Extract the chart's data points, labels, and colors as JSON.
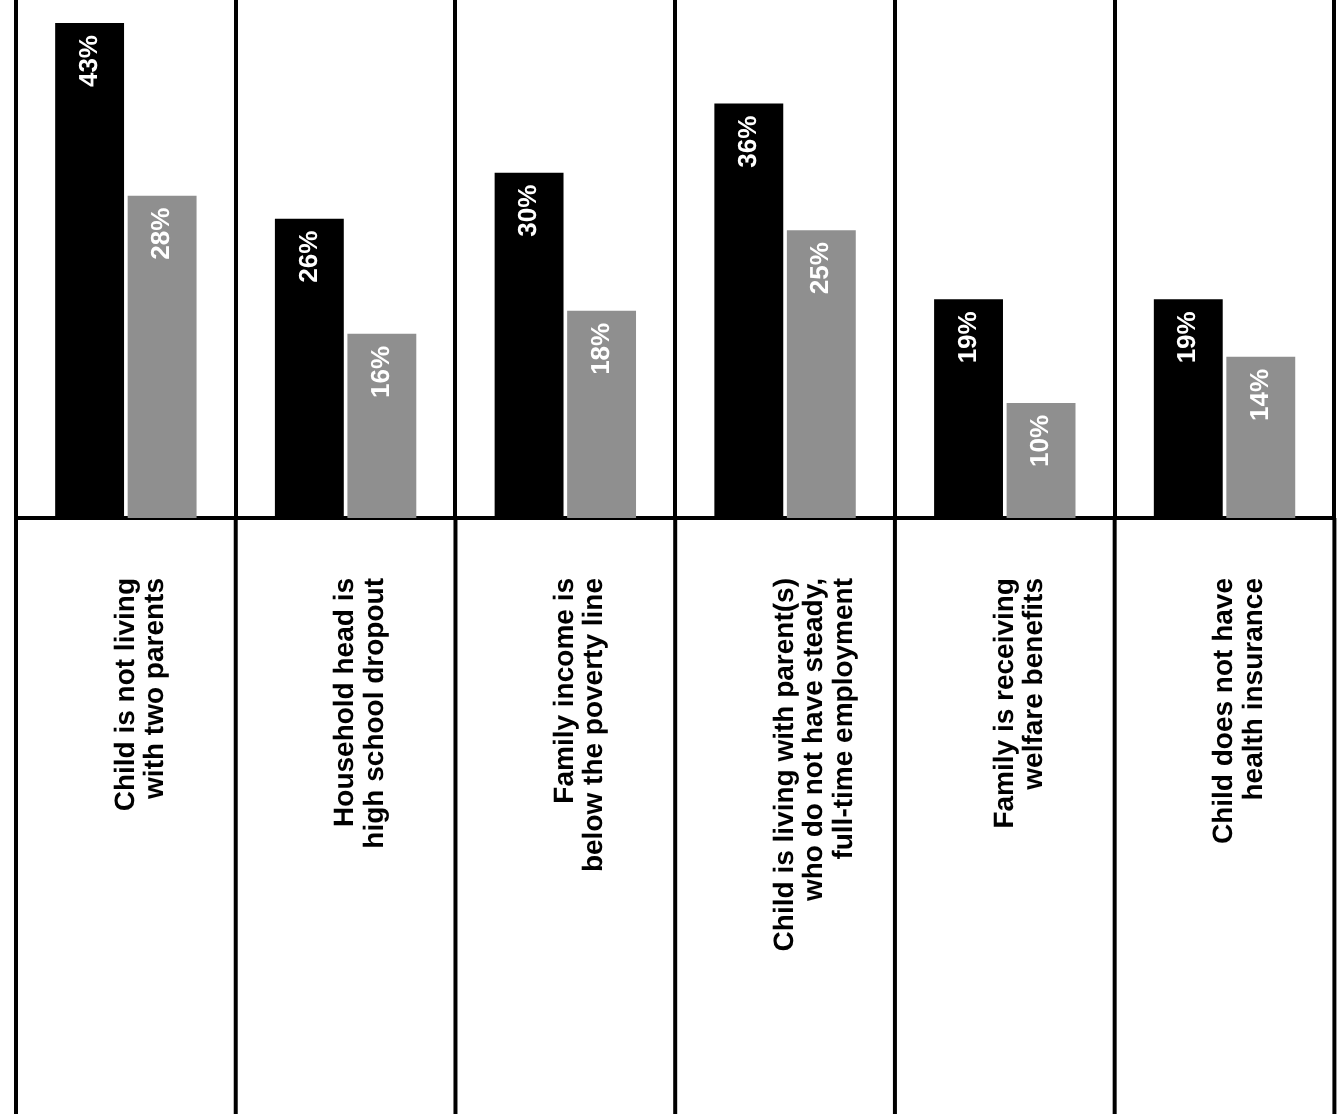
{
  "chart_data": {
    "type": "bar",
    "categories": [
      "Child is not living\nwith two parents",
      "Household head is\nhigh school dropout",
      "Family income is\nbelow the poverty line",
      "Child is living with parent(s)\nwho do not have steady,\nfull-time employment",
      "Family is receiving\nwelfare benefits",
      "Child does not have\nhealth insurance"
    ],
    "series": [
      {
        "color": "#000000",
        "values": [
          43,
          26,
          30,
          36,
          19,
          19
        ],
        "value_labels": [
          "43%",
          "26%",
          "30%",
          "36%",
          "19%",
          "19%"
        ]
      },
      {
        "color": "#8f8f8f",
        "values": [
          28,
          16,
          18,
          25,
          10,
          14
        ],
        "value_labels": [
          "28%",
          "16%",
          "18%",
          "25%",
          "10%",
          "14%"
        ]
      }
    ],
    "grid": "x",
    "legend": false
  }
}
